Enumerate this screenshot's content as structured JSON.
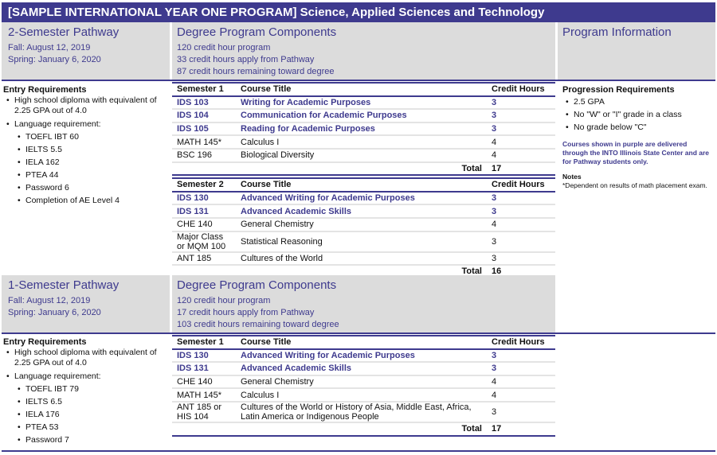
{
  "title": "[SAMPLE INTERNATIONAL YEAR ONE PROGRAM] Science, Applied Sciences and Technology",
  "accent": "#3e3a8e",
  "sections": [
    {
      "pathway": "2-Semester Pathway",
      "dates": [
        "Fall: August 12, 2019",
        "Spring: January 6, 2020"
      ],
      "components_title": "Degree Program Components",
      "components": [
        "120 credit hour program",
        "33 credit hours apply from Pathway",
        "87 credit hours remaining toward degree"
      ],
      "entry_title": "Entry Requirements",
      "entry": [
        "High school diploma with equivalent of 2.25 GPA out of 4.0",
        "Language requirement:"
      ],
      "lang": [
        "TOEFL IBT 60",
        "IELTS 5.5",
        "IELA 162",
        "PTEA 44",
        "Password 6",
        "Completion of AE Level 4"
      ],
      "semesters": [
        {
          "header": [
            "Semester 1",
            "Course Title",
            "Credit Hours"
          ],
          "rows": [
            {
              "code": "IDS 103",
              "title": "Writing for Academic Purposes",
              "cr": "3",
              "p": true
            },
            {
              "code": "IDS 104",
              "title": "Communication for Academic Purposes",
              "cr": "3",
              "p": true
            },
            {
              "code": "IDS 105",
              "title": "Reading for Academic Purposes",
              "cr": "3",
              "p": true
            },
            {
              "code": "MATH 145*",
              "title": "Calculus I",
              "cr": "4"
            },
            {
              "code": "BSC 196",
              "title": "Biological Diversity",
              "cr": "4"
            }
          ],
          "total_label": "Total",
          "total": "17"
        },
        {
          "header": [
            "Semester 2",
            "Course Title",
            "Credit Hours"
          ],
          "rows": [
            {
              "code": "IDS 130",
              "title": "Advanced Writing for Academic Purposes",
              "cr": "3",
              "p": true
            },
            {
              "code": "IDS 131",
              "title": "Advanced Academic Skills",
              "cr": "3",
              "p": true
            },
            {
              "code": "CHE 140",
              "title": "General Chemistry",
              "cr": "4"
            },
            {
              "code": "Major Class or MQM 100",
              "title": "Statistical Reasoning",
              "cr": "3",
              "tall": true
            },
            {
              "code": "ANT 185",
              "title": "Cultures of the World",
              "cr": "3"
            }
          ],
          "total_label": "Total",
          "total": "16"
        }
      ]
    },
    {
      "pathway": "1-Semester Pathway",
      "dates": [
        "Fall: August 12, 2019",
        "Spring: January 6, 2020"
      ],
      "components_title": "Degree Program Components",
      "components": [
        "120 credit hour program",
        "17 credit hours apply from Pathway",
        "103 credit hours remaining toward degree"
      ],
      "entry_title": "Entry Requirements",
      "entry": [
        "High school diploma with equivalent of 2.25 GPA out of 4.0",
        "Language requirement:"
      ],
      "lang": [
        "TOEFL IBT 79",
        "IELTS 6.5",
        "IELA 176",
        "PTEA 53",
        "Password 7"
      ],
      "semesters": [
        {
          "header": [
            "Semester 1",
            "Course Title",
            "Credit Hours"
          ],
          "rows": [
            {
              "code": "IDS 130",
              "title": "Advanced Writing for Academic Purposes",
              "cr": "3",
              "p": true
            },
            {
              "code": "IDS 131",
              "title": "Advanced Academic Skills",
              "cr": "3",
              "p": true
            },
            {
              "code": "CHE 140",
              "title": "General Chemistry",
              "cr": "4"
            },
            {
              "code": "MATH 145*",
              "title": "Calculus I",
              "cr": "4"
            },
            {
              "code": "ANT 185 or HIS 104",
              "title": "Cultures of the World or History of Asia, Middle East, Africa, Latin America or Indigenous People",
              "cr": "3",
              "tall": true
            }
          ],
          "total_label": "Total",
          "total": "17"
        }
      ]
    }
  ],
  "info": {
    "title": "Program Information",
    "prog_title": "Progression Requirements",
    "prog": [
      "2.5 GPA",
      "No \"W\" or \"I\" grade in a class",
      "No grade below \"C\""
    ],
    "purple_note": "Courses shown in purple are delivered through the INTO Illinois State Center and are for Pathway students only.",
    "notes_title": "Notes",
    "notes": "*Dependent on results of math placement exam."
  }
}
